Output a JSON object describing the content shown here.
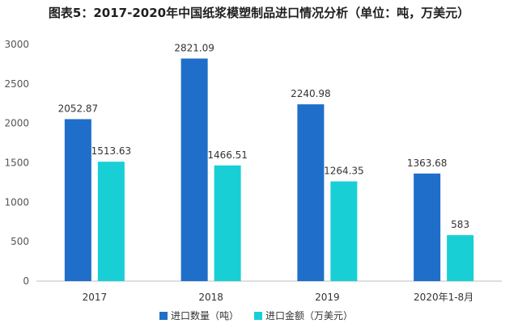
{
  "chart_data": {
    "type": "bar",
    "title": "图表5：2017-2020年中国纸浆模塑制品进口情况分析（单位：吨，万美元）",
    "categories": [
      "2017",
      "2018",
      "2019",
      "2020年1-8月"
    ],
    "series": [
      {
        "name": "进口数量（吨）",
        "values": [
          2052.87,
          2821.09,
          2240.98,
          1363.68
        ],
        "labels": [
          "2052.87",
          "2821.09",
          "2240.98",
          "1363.68"
        ]
      },
      {
        "name": "进口金额（万美元）",
        "values": [
          1513.63,
          1466.51,
          1264.35,
          583
        ],
        "labels": [
          "1513.63",
          "1466.51",
          "1264.35",
          "583"
        ]
      }
    ],
    "ylim": [
      0,
      3000
    ],
    "yticks": [
      "0",
      "500",
      "1000",
      "1500",
      "2000",
      "2500",
      "3000"
    ],
    "xlabel": "",
    "ylabel": "",
    "grid": false,
    "legend_position": "bottom",
    "colors": [
      "#1f6ec9",
      "#19cfd6"
    ]
  }
}
